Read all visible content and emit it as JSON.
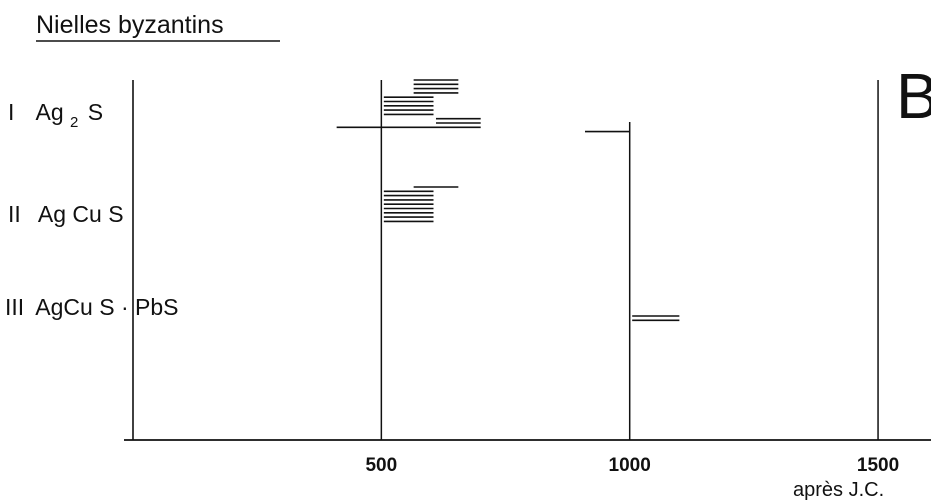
{
  "chart_data": {
    "type": "range",
    "title": "Nielles byzantins",
    "panel_letter": "B",
    "xlabel": "après J.C.",
    "x_ticks": [
      500,
      1000,
      1500
    ],
    "xlim": [
      0,
      1610
    ],
    "grid": "vertical lines at 500, 1000, 1500",
    "rows": [
      {
        "label_prefix": "I",
        "label_main": "Ag",
        "label_sub": "2",
        "label_suffix": "S",
        "intervals": [
          [
            565,
            655
          ],
          [
            565,
            655
          ],
          [
            565,
            655
          ],
          [
            565,
            655
          ],
          [
            505,
            605
          ],
          [
            505,
            605
          ],
          [
            505,
            605
          ],
          [
            505,
            605
          ],
          [
            505,
            605
          ],
          [
            610,
            700
          ],
          [
            610,
            700
          ],
          [
            410,
            700
          ],
          [
            910,
            1000
          ]
        ]
      },
      {
        "label_prefix": "II",
        "label_main": "Ag Cu S",
        "intervals": [
          [
            565,
            655
          ],
          [
            505,
            605
          ],
          [
            505,
            605
          ],
          [
            505,
            605
          ],
          [
            505,
            605
          ],
          [
            505,
            605
          ],
          [
            505,
            605
          ],
          [
            505,
            605
          ],
          [
            505,
            605
          ]
        ]
      },
      {
        "label_prefix": "III",
        "label_main": "AgCu S · PbS",
        "intervals": [
          [
            1005,
            1100
          ],
          [
            1005,
            1100
          ]
        ]
      }
    ]
  }
}
